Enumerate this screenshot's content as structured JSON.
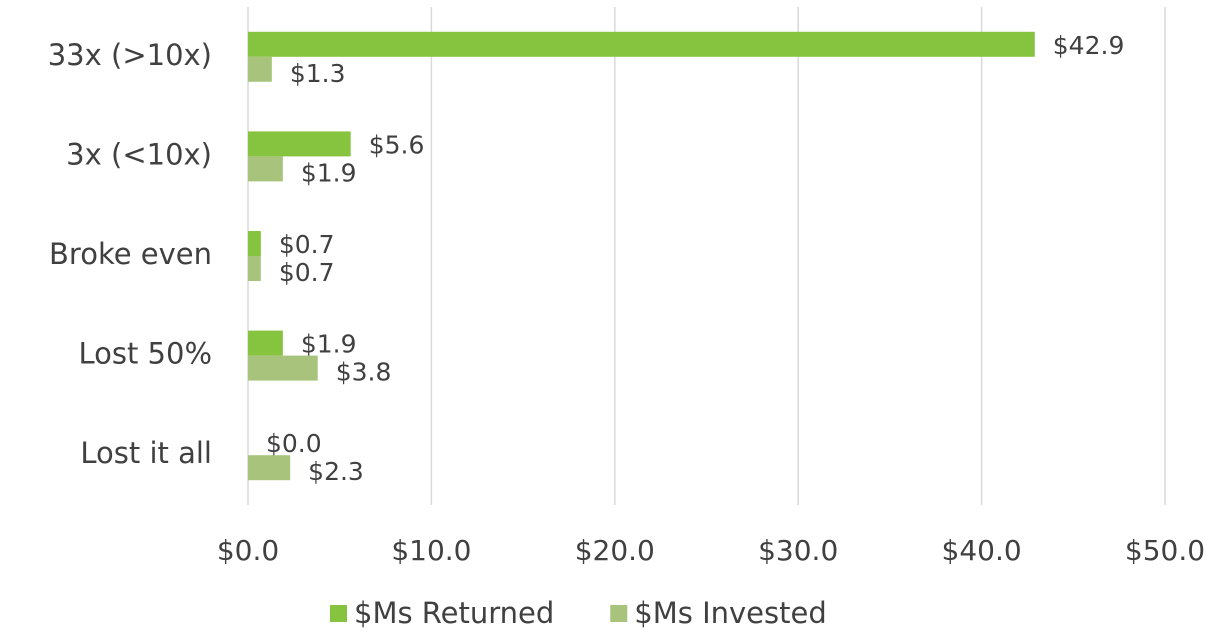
{
  "chart_data": {
    "type": "barh",
    "categories": [
      "33x (>10x)",
      "3x (<10x)",
      "Broke even",
      "Lost 50%",
      "Lost it all"
    ],
    "series": [
      {
        "name": "$Ms Returned",
        "color": "#86c440",
        "values": [
          42.9,
          5.6,
          0.7,
          1.9,
          0.0
        ],
        "value_labels": [
          "$42.9",
          "$5.6",
          "$0.7",
          "$1.9",
          "$0.0"
        ]
      },
      {
        "name": "$Ms Invested",
        "color": "#a8c47c",
        "values": [
          1.3,
          1.9,
          0.7,
          3.8,
          2.3
        ],
        "value_labels": [
          "$1.3",
          "$1.9",
          "$0.7",
          "$3.8",
          "$2.3"
        ]
      }
    ],
    "xlim": [
      0,
      50
    ],
    "xticks": [
      {
        "value": 0,
        "label": "$0.0"
      },
      {
        "value": 10,
        "label": "$10.0"
      },
      {
        "value": 20,
        "label": "$20.0"
      },
      {
        "value": 30,
        "label": "$30.0"
      },
      {
        "value": 40,
        "label": "$40.0"
      },
      {
        "value": 50,
        "label": "$50.0"
      }
    ],
    "grid": true,
    "legend": "bottom"
  }
}
